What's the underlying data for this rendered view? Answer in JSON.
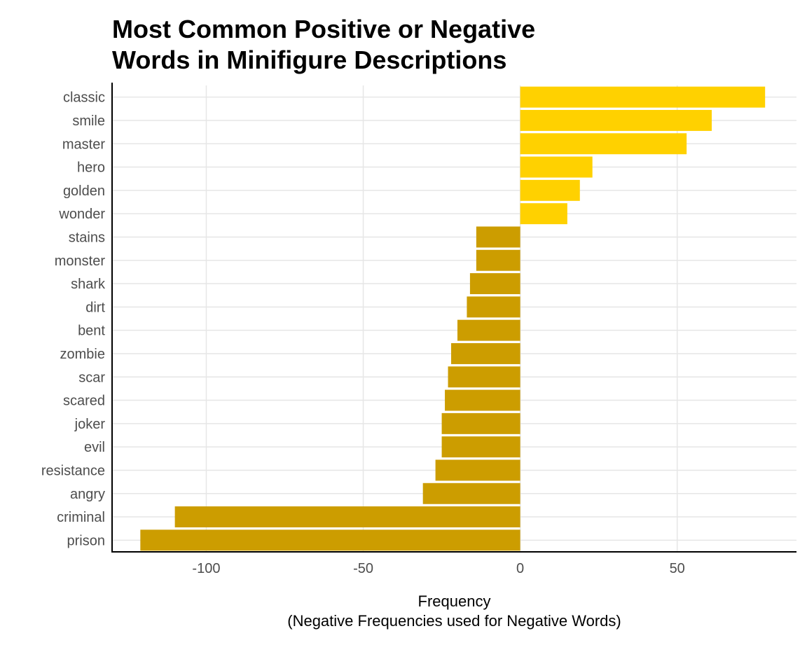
{
  "chart_data": {
    "type": "bar",
    "orientation": "horizontal",
    "title_lines": [
      "Most Common Positive or Negative",
      "Words in Minifigure Descriptions"
    ],
    "xlabel_lines": [
      "Frequency",
      "(Negative Frequencies used for Negative Words)"
    ],
    "ylabel": "",
    "xlim": [
      -130,
      88
    ],
    "xticks": [
      -100,
      -50,
      0,
      50
    ],
    "xtick_labels": [
      "-100",
      "-50",
      "0",
      "50"
    ],
    "grid": true,
    "legend": "none",
    "colors": {
      "positive": "#FFD100",
      "negative": "#CC9D00",
      "grid": "#E6E6E6",
      "axis": "#000000",
      "tick_text": "#4D4D4D"
    },
    "categories": [
      "classic",
      "smile",
      "master",
      "hero",
      "golden",
      "wonder",
      "stains",
      "monster",
      "shark",
      "dirt",
      "bent",
      "zombie",
      "scar",
      "scared",
      "joker",
      "evil",
      "resistance",
      "angry",
      "criminal",
      "prison"
    ],
    "values": [
      78,
      61,
      53,
      23,
      19,
      15,
      -14,
      -14,
      -16,
      -17,
      -20,
      -22,
      -23,
      -24,
      -25,
      -25,
      -27,
      -31,
      -110,
      -121
    ]
  }
}
